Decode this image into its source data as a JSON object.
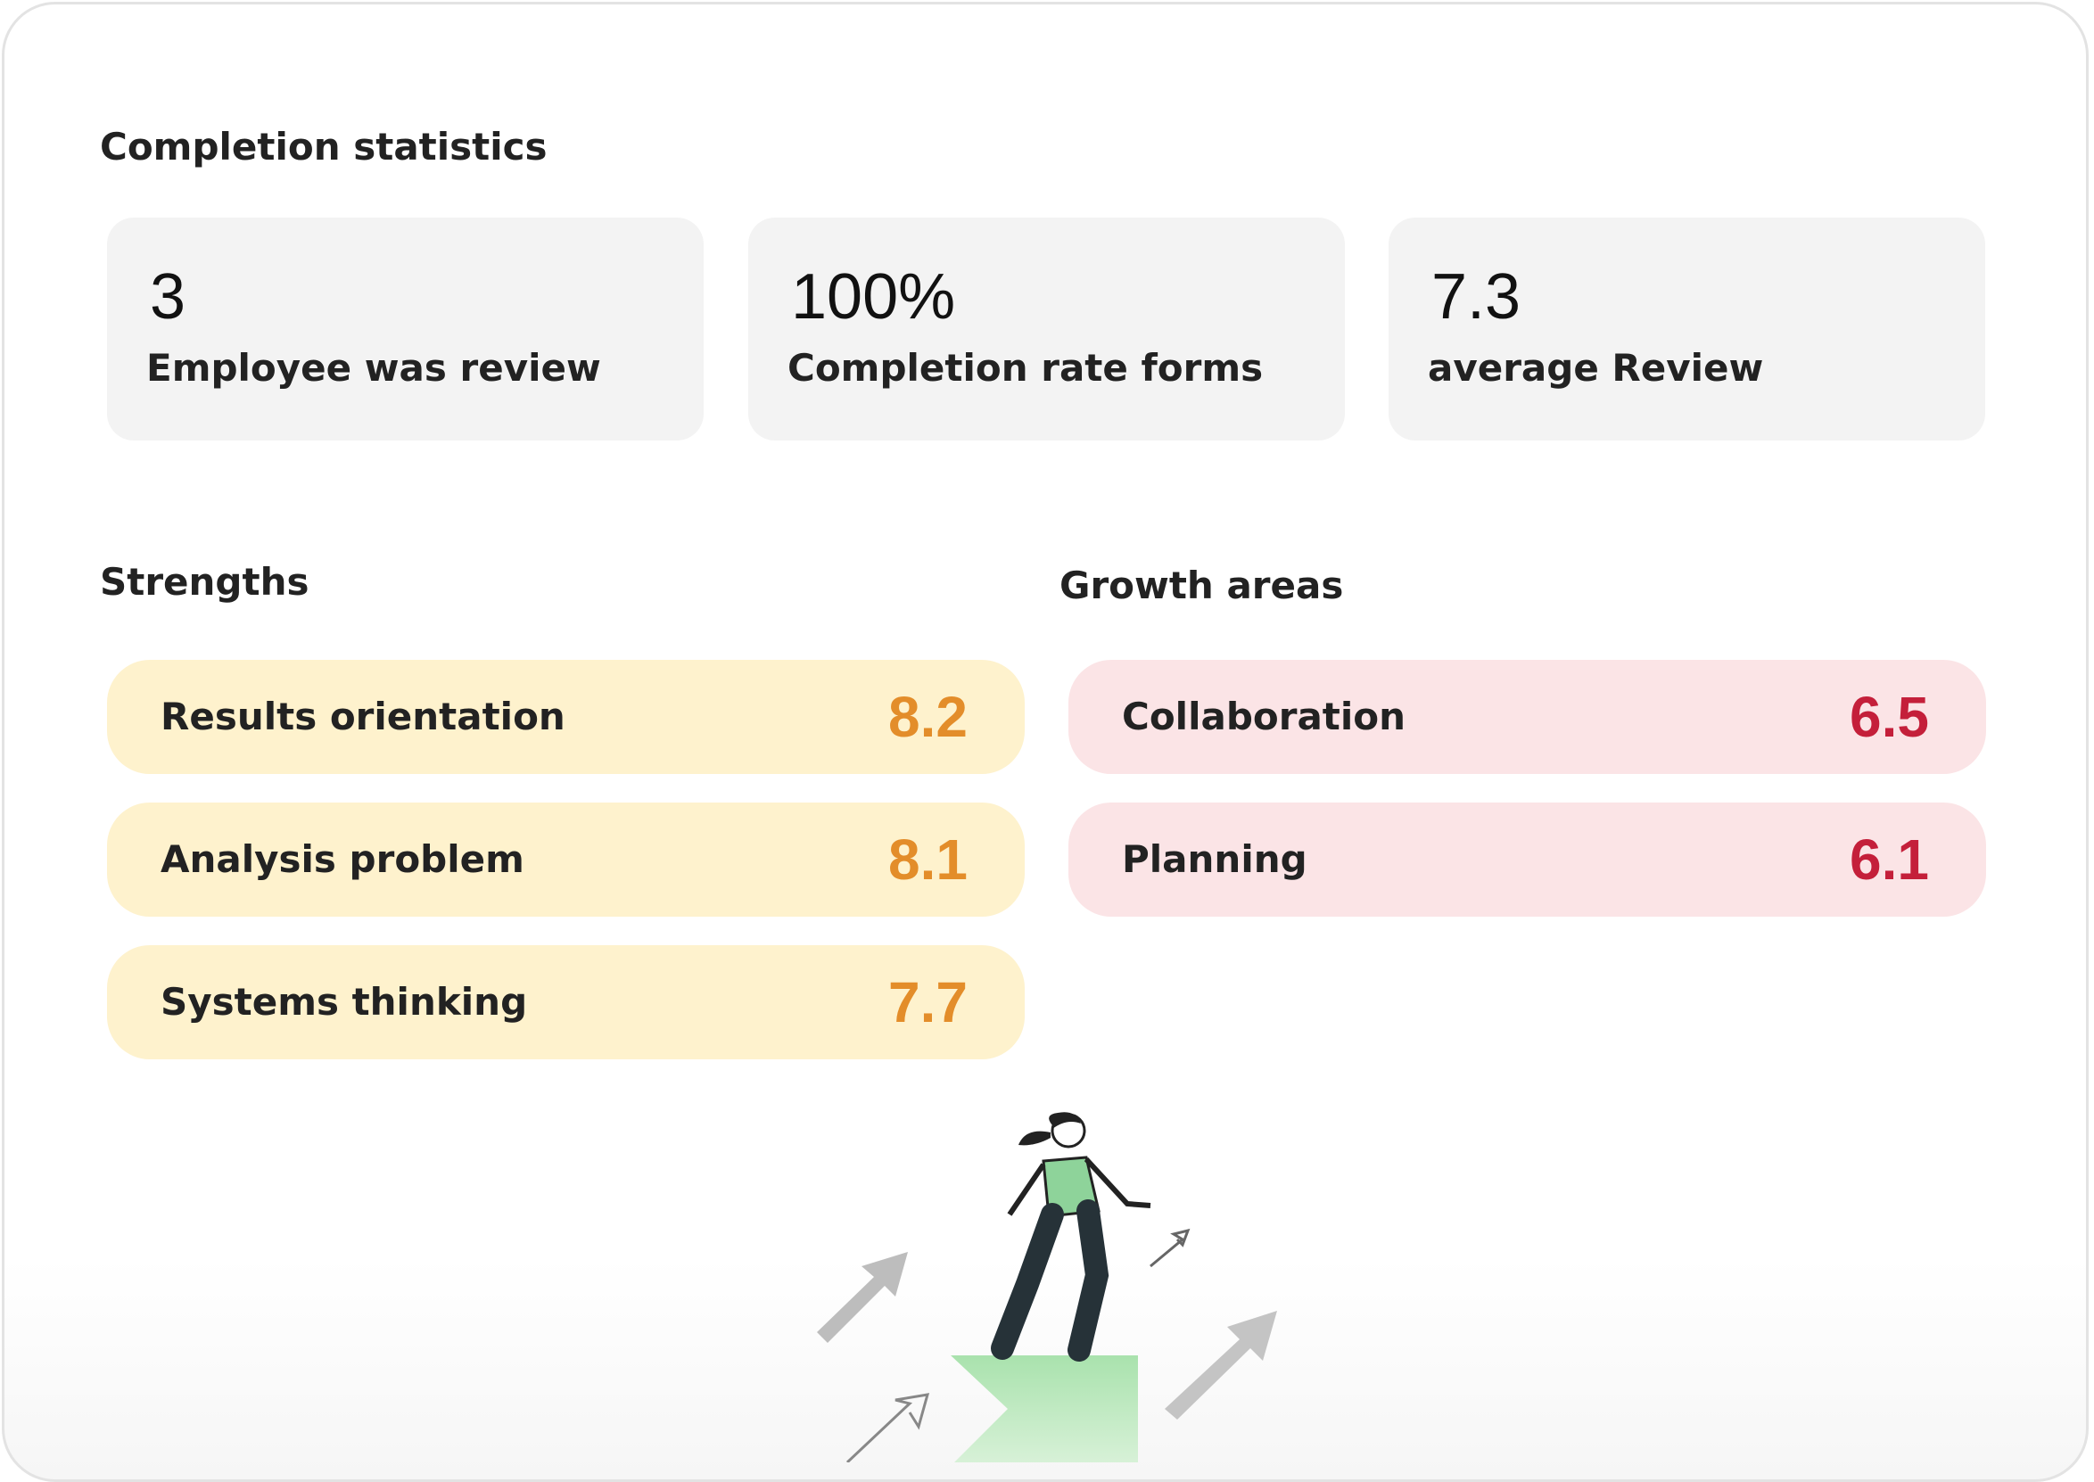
{
  "completion": {
    "title": "Completion statistics",
    "stats": [
      {
        "value": "3",
        "label": "Employee was review"
      },
      {
        "value": "100%",
        "label": "Completion rate forms"
      },
      {
        "value": "7.3",
        "label": "average Review"
      }
    ]
  },
  "strengths": {
    "title": "Strengths",
    "items": [
      {
        "label": "Results orientation",
        "score": 8.2
      },
      {
        "label": "Analysis problem",
        "score": 8.1
      },
      {
        "label": "Systems thinking",
        "score": 7.7
      }
    ]
  },
  "growth": {
    "title": "Growth areas",
    "items": [
      {
        "label": "Collaboration",
        "score": 6.5
      },
      {
        "label": "Planning",
        "score": 6.1
      }
    ]
  }
}
